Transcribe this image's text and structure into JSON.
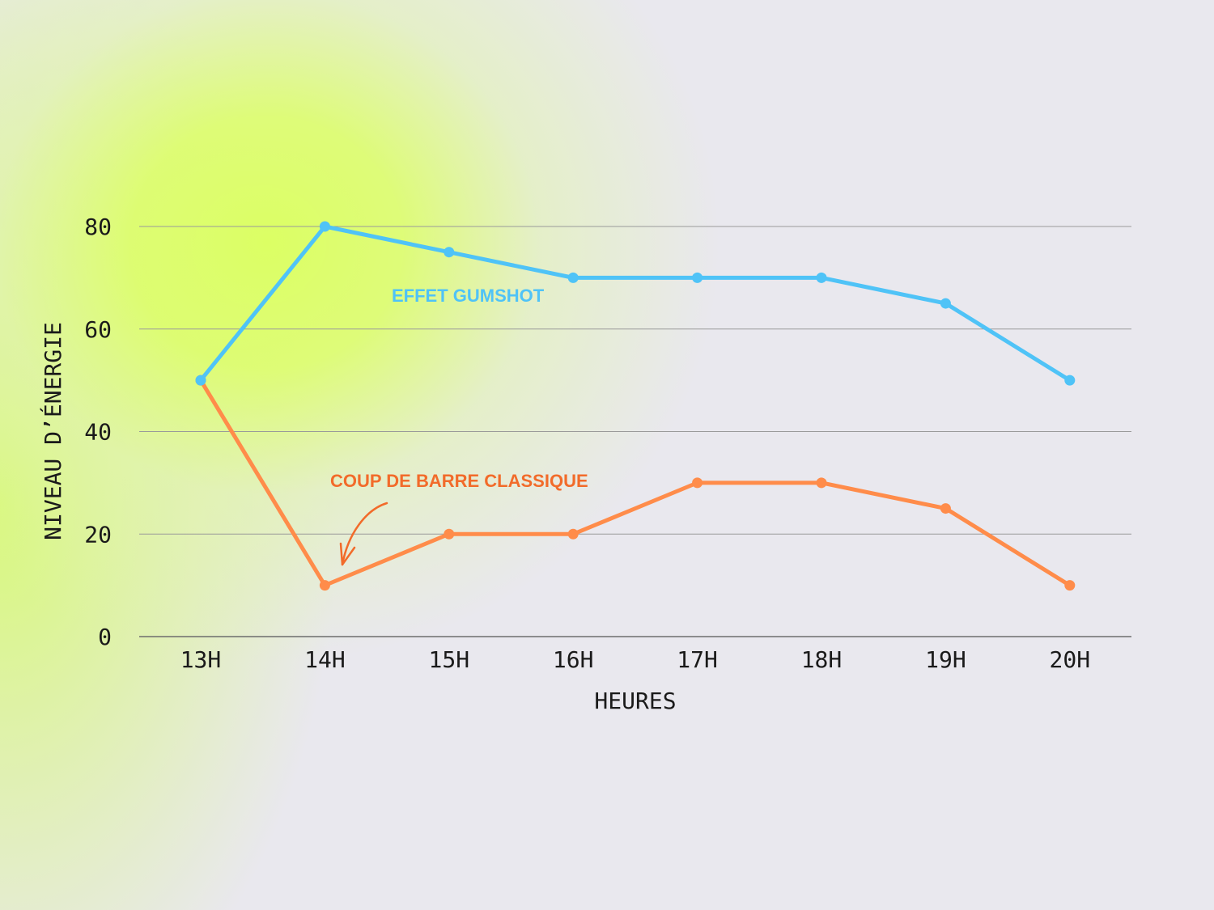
{
  "chart_data": {
    "type": "line",
    "categories": [
      "13H",
      "14H",
      "15H",
      "16H",
      "17H",
      "18H",
      "19H",
      "20H"
    ],
    "series": [
      {
        "name": "EFFET GUMSHOT",
        "color": "#4fc3f7",
        "values": [
          50,
          80,
          75,
          70,
          70,
          70,
          65,
          50
        ]
      },
      {
        "name": "COUP DE BARRE CLASSIQUE",
        "color": "#ff8c4a",
        "values": [
          50,
          10,
          20,
          20,
          30,
          30,
          25,
          10
        ]
      }
    ],
    "title": "",
    "xlabel": "HEURES",
    "ylabel": "NIVEAU D’ÉNERGIE",
    "ylim": [
      0,
      80
    ],
    "yticks": [
      0,
      20,
      40,
      60,
      80
    ],
    "grid": true,
    "annotation_color": "#f26b2a"
  }
}
